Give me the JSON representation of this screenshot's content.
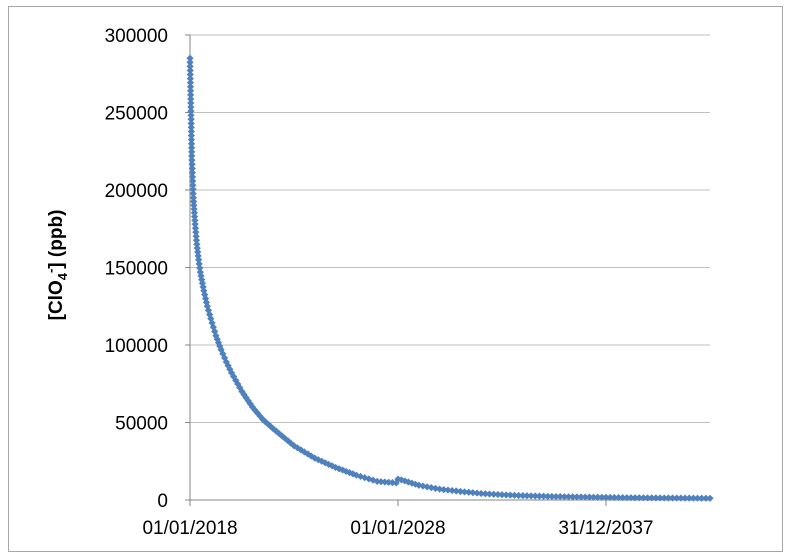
{
  "chart_data": {
    "type": "line",
    "title": "",
    "xlabel": "",
    "ylabel": "[ClO4-] (ppb)",
    "ylabel_parts": {
      "base": "[ClO",
      "subscript": "4",
      "superscript": "-",
      "tail": "] (ppb)"
    },
    "x_tick_labels": [
      "01/01/2018",
      "01/01/2028",
      "31/12/2037"
    ],
    "x_ticks": [
      "2018-01-01",
      "2028-01-01",
      "2037-12-31"
    ],
    "xlim": [
      "2018-01-01",
      "2043-01-01"
    ],
    "ylim": [
      0,
      300000
    ],
    "y_ticks": [
      0,
      50000,
      100000,
      150000,
      200000,
      250000,
      300000
    ],
    "y_tick_labels": [
      "0",
      "50000",
      "100000",
      "150000",
      "200000",
      "250000",
      "300000"
    ],
    "grid": {
      "horizontal": true,
      "vertical": false
    },
    "legend": "none",
    "series": [
      {
        "color": "#4f81bd",
        "marker": "diamond",
        "x": [
          "2018-01-01",
          "2018-02-01",
          "2018-03-01",
          "2018-04-01",
          "2018-05-01",
          "2018-06-01",
          "2018-07-01",
          "2018-09-01",
          "2018-11-01",
          "2019-01-01",
          "2019-04-01",
          "2019-07-01",
          "2019-10-01",
          "2020-01-01",
          "2020-07-01",
          "2021-01-01",
          "2021-07-01",
          "2022-01-01",
          "2023-01-01",
          "2024-01-01",
          "2025-01-01",
          "2026-01-01",
          "2027-01-01",
          "2027-12-01",
          "2028-01-01",
          "2028-03-01",
          "2029-01-01",
          "2030-01-01",
          "2031-01-01",
          "2032-01-01",
          "2033-01-01",
          "2034-01-01",
          "2035-01-01",
          "2036-01-01",
          "2037-01-01",
          "2038-01-01",
          "2039-01-01",
          "2040-01-01",
          "2041-01-01",
          "2042-01-01",
          "2043-01-01"
        ],
        "y": [
          285000,
          222000,
          195000,
          178000,
          165000,
          155000,
          147000,
          135000,
          125000,
          117000,
          106000,
          97000,
          89000,
          82000,
          70000,
          60000,
          52000,
          46000,
          35000,
          27000,
          21000,
          16000,
          12000,
          11000,
          13500,
          13000,
          9500,
          7000,
          5500,
          4200,
          3400,
          2800,
          2400,
          2100,
          1900,
          1700,
          1500,
          1400,
          1300,
          1200,
          1100
        ]
      }
    ]
  }
}
